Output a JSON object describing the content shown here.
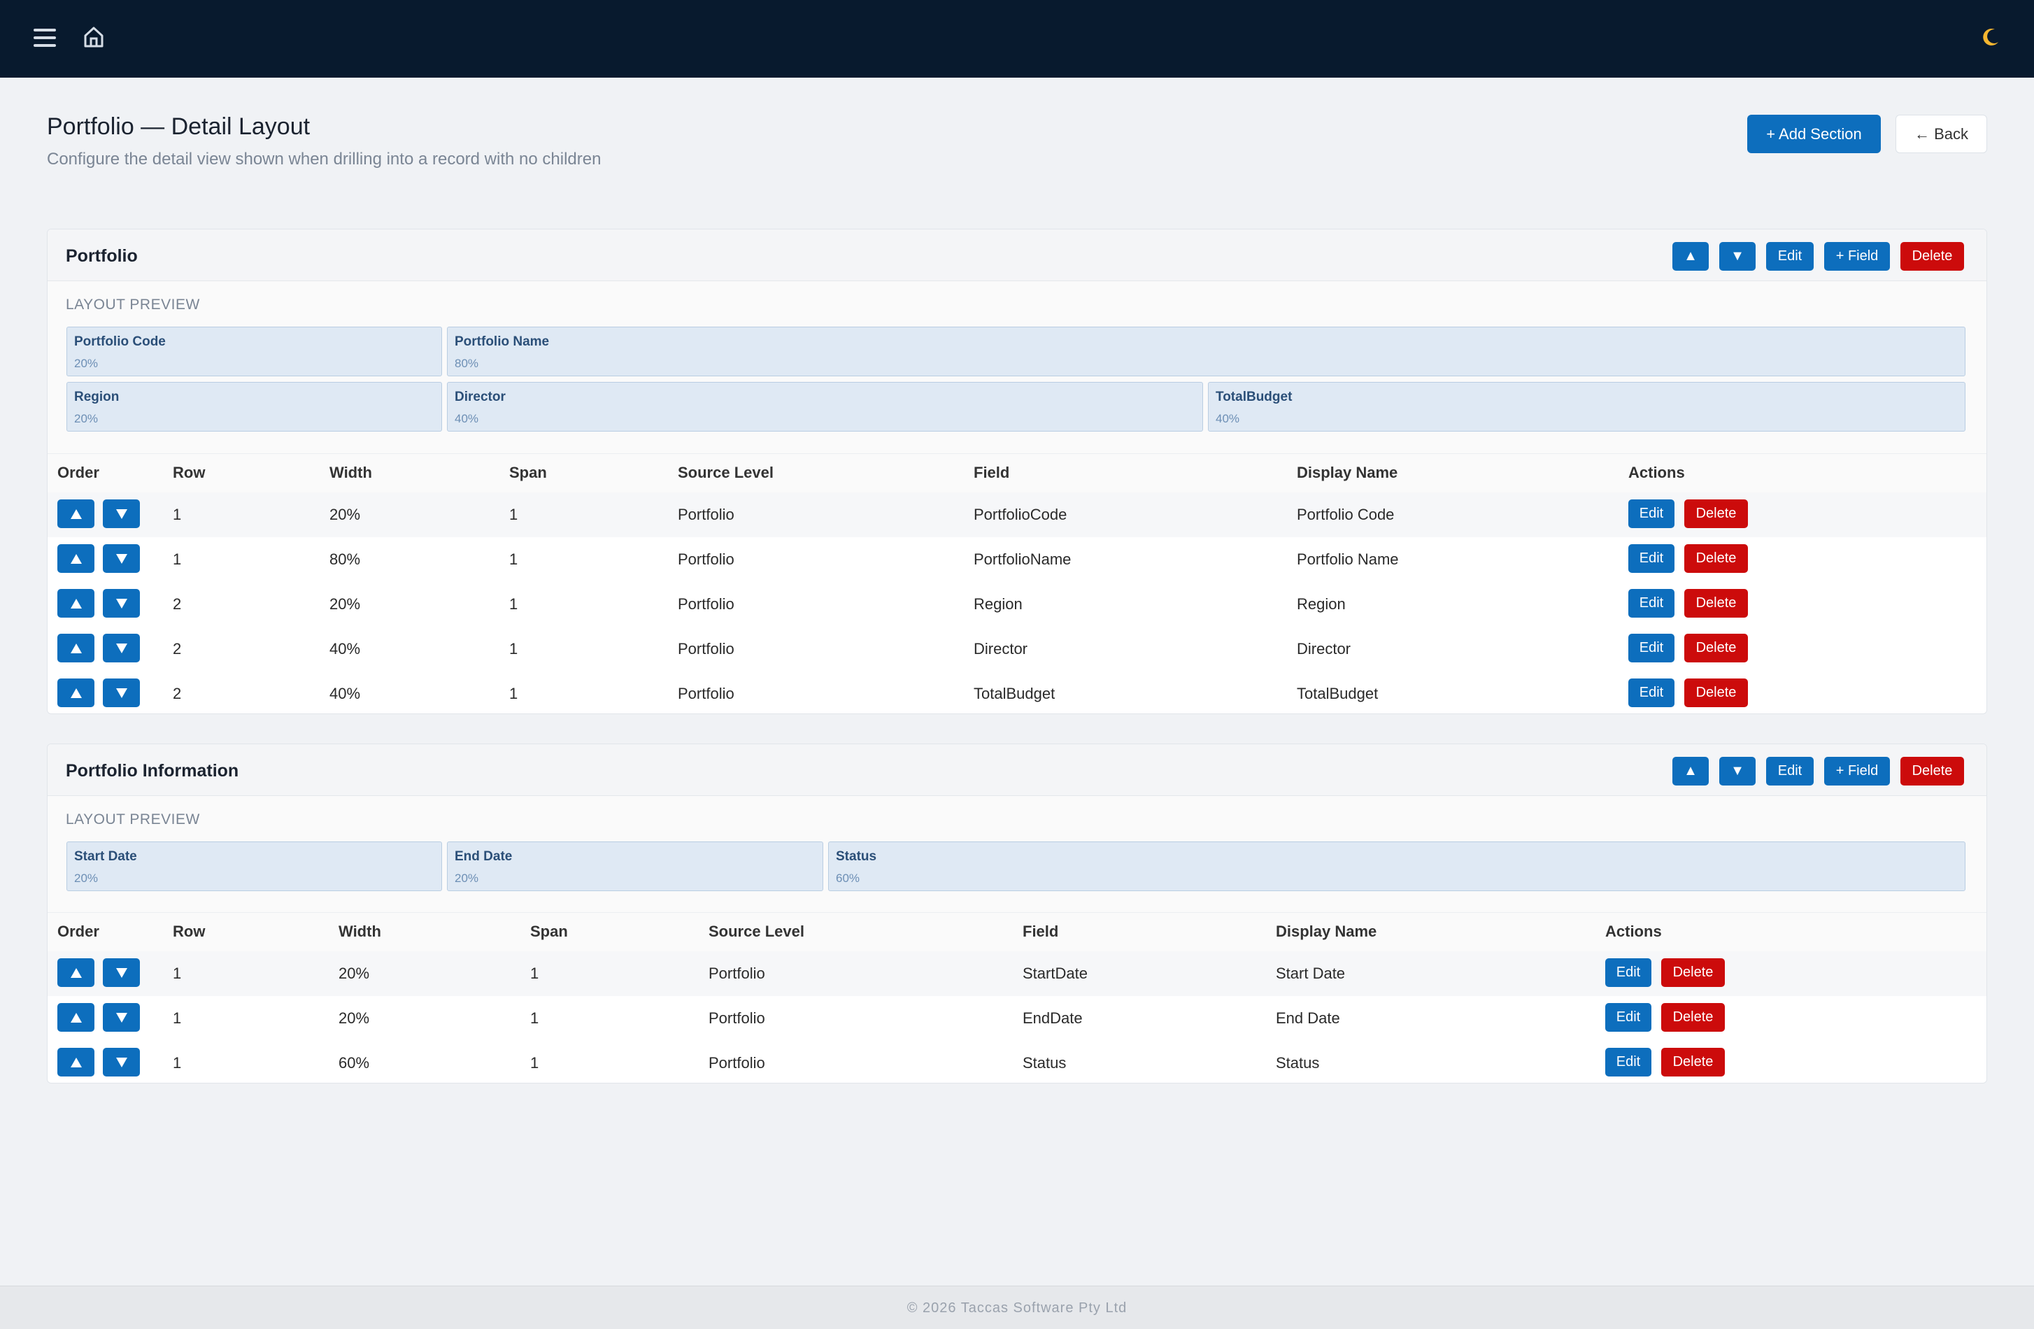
{
  "header": {
    "menu_icon": "hamburger-menu-icon",
    "home_icon": "home-icon",
    "theme_icon": "moon-icon",
    "theme_icon_color": "#f5b630"
  },
  "page": {
    "title": "Portfolio — Detail Layout",
    "subtitle": "Configure the detail view shown when drilling into a record with no children",
    "add_section_label": "+ Add Section",
    "back_label": "← Back"
  },
  "colors": {
    "topbar": "#081a2e",
    "primary": "#0d6ebd",
    "danger": "#cc0b0b",
    "preview_cell": "#dfe9f4"
  },
  "sections": [
    {
      "title": "Portfolio",
      "buttons": {
        "up": "▲",
        "down": "▼",
        "edit": "Edit",
        "add_field": "+ Field",
        "delete": "Delete"
      },
      "preview_label": "LAYOUT PREVIEW",
      "preview_rows": [
        [
          {
            "name": "Portfolio Code",
            "width": "20%"
          },
          {
            "name": "Portfolio Name",
            "width": "80%"
          }
        ],
        [
          {
            "name": "Region",
            "width": "20%"
          },
          {
            "name": "Director",
            "width": "40%"
          },
          {
            "name": "TotalBudget",
            "width": "40%"
          }
        ]
      ],
      "columns": [
        "Order",
        "Row",
        "Width",
        "Span",
        "Source Level",
        "Field",
        "Display Name",
        "Actions"
      ],
      "rows": [
        {
          "row": "1",
          "width": "20%",
          "span": "1",
          "source": "Portfolio",
          "field": "PortfolioCode",
          "display": "Portfolio Code"
        },
        {
          "row": "1",
          "width": "80%",
          "span": "1",
          "source": "Portfolio",
          "field": "PortfolioName",
          "display": "Portfolio Name"
        },
        {
          "row": "2",
          "width": "20%",
          "span": "1",
          "source": "Portfolio",
          "field": "Region",
          "display": "Region"
        },
        {
          "row": "2",
          "width": "40%",
          "span": "1",
          "source": "Portfolio",
          "field": "Director",
          "display": "Director"
        },
        {
          "row": "2",
          "width": "40%",
          "span": "1",
          "source": "Portfolio",
          "field": "TotalBudget",
          "display": "TotalBudget"
        }
      ],
      "row_edit": "Edit",
      "row_delete": "Delete"
    },
    {
      "title": "Portfolio Information",
      "buttons": {
        "up": "▲",
        "down": "▼",
        "edit": "Edit",
        "add_field": "+ Field",
        "delete": "Delete"
      },
      "preview_label": "LAYOUT PREVIEW",
      "preview_rows": [
        [
          {
            "name": "Start Date",
            "width": "20%"
          },
          {
            "name": "End Date",
            "width": "20%"
          },
          {
            "name": "Status",
            "width": "60%"
          }
        ]
      ],
      "columns": [
        "Order",
        "Row",
        "Width",
        "Span",
        "Source Level",
        "Field",
        "Display Name",
        "Actions"
      ],
      "rows": [
        {
          "row": "1",
          "width": "20%",
          "span": "1",
          "source": "Portfolio",
          "field": "StartDate",
          "display": "Start Date"
        },
        {
          "row": "1",
          "width": "20%",
          "span": "1",
          "source": "Portfolio",
          "field": "EndDate",
          "display": "End Date"
        },
        {
          "row": "1",
          "width": "60%",
          "span": "1",
          "source": "Portfolio",
          "field": "Status",
          "display": "Status"
        }
      ],
      "row_edit": "Edit",
      "row_delete": "Delete"
    }
  ],
  "footer": {
    "text": "© 2026 Taccas Software Pty Ltd"
  }
}
